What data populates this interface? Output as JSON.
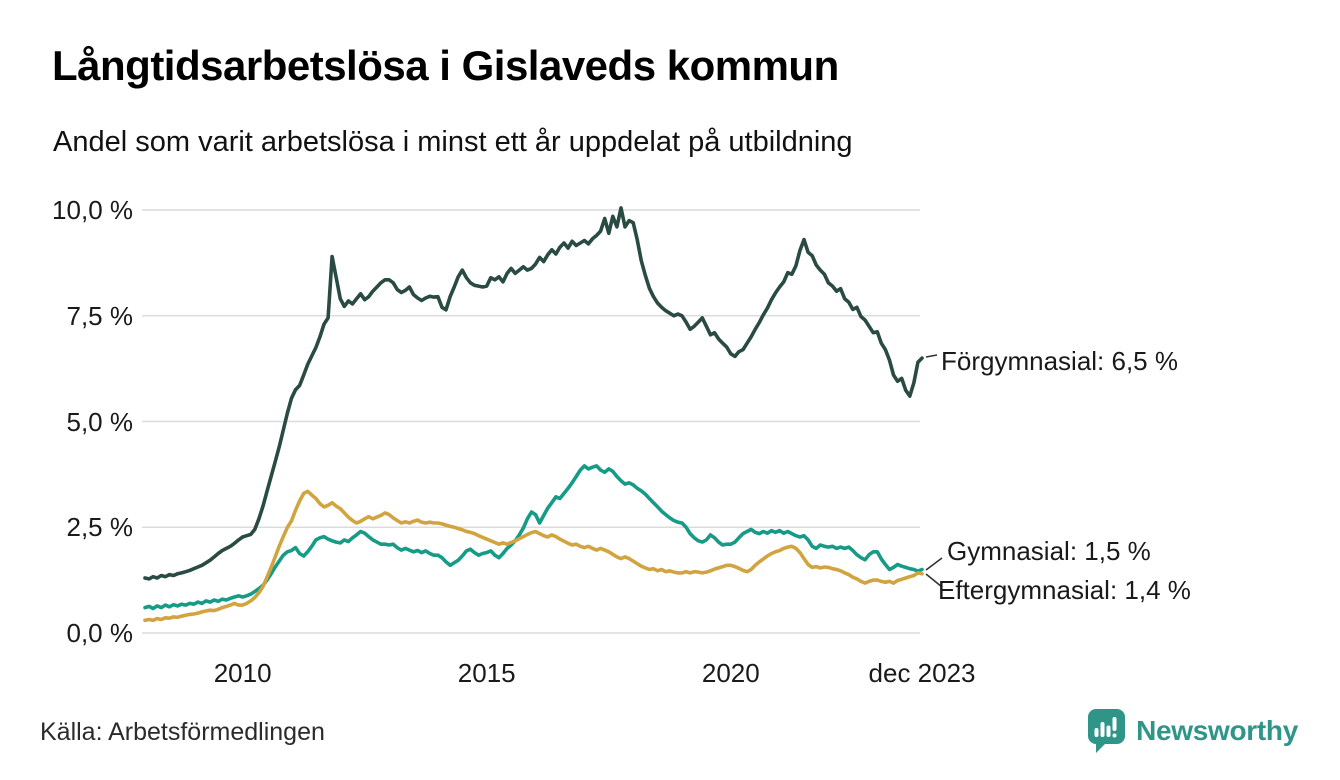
{
  "header": {
    "title": "Långtidsarbetslösa i Gislaveds kommun",
    "subtitle": "Andel som varit arbetslösa i minst ett år uppdelat på utbildning"
  },
  "footer": {
    "source": "Källa: Arbetsförmedlingen"
  },
  "branding": {
    "name": "Newsworthy",
    "color": "#2f9589",
    "icon": "newsworthy-speech-bubble-bar-chart-icon"
  },
  "colors": {
    "background": "#ffffff",
    "gridline": "#dcdcdc",
    "text": "#1a1a1a",
    "leader_line": "#333333",
    "forgymnasial": "#2a4b43",
    "gymnasial": "#169b87",
    "eftergymnasial": "#d2a440"
  },
  "chart_data": {
    "type": "line",
    "title": "Långtidsarbetslösa i Gislaveds kommun",
    "subtitle": "Andel som varit arbetslösa i minst ett år uppdelat på utbildning",
    "unit": "%",
    "frequency": "monthly",
    "x_start": "2008-01",
    "x_end": "2023-12",
    "ylim": [
      0,
      10
    ],
    "grid": "horizontal",
    "legend_position": "end-of-line-labels",
    "yticks": [
      {
        "value": 0,
        "label": "0,0 %"
      },
      {
        "value": 2.5,
        "label": "2,5 %"
      },
      {
        "value": 5,
        "label": "5,0 %"
      },
      {
        "value": 7.5,
        "label": "7,5 %"
      },
      {
        "value": 10,
        "label": "10,0 %"
      }
    ],
    "xticks": [
      {
        "year": 2010,
        "label": "2010"
      },
      {
        "year": 2015,
        "label": "2015"
      },
      {
        "year": 2020,
        "label": "2020"
      },
      {
        "year": 2023.917,
        "label": "dec 2023"
      }
    ],
    "series": [
      {
        "name": "Förgymnasial",
        "color": "#2a4b43",
        "end_value": 6.5,
        "end_label": "Förgymnasial: 6,5 %",
        "values": [
          1.3,
          1.28,
          1.33,
          1.3,
          1.36,
          1.33,
          1.38,
          1.36,
          1.4,
          1.42,
          1.45,
          1.48,
          1.52,
          1.56,
          1.6,
          1.66,
          1.72,
          1.8,
          1.88,
          1.95,
          2.0,
          2.05,
          2.12,
          2.2,
          2.27,
          2.3,
          2.33,
          2.45,
          2.7,
          3.0,
          3.35,
          3.7,
          4.05,
          4.4,
          4.8,
          5.2,
          5.55,
          5.75,
          5.85,
          6.1,
          6.35,
          6.55,
          6.75,
          7.0,
          7.3,
          7.45,
          8.9,
          8.4,
          7.9,
          7.72,
          7.85,
          7.78,
          7.9,
          8.02,
          7.88,
          7.95,
          8.08,
          8.18,
          8.28,
          8.35,
          8.35,
          8.28,
          8.12,
          8.05,
          8.1,
          8.18,
          8.0,
          7.92,
          7.86,
          7.92,
          7.96,
          7.94,
          7.95,
          7.7,
          7.64,
          7.95,
          8.18,
          8.42,
          8.58,
          8.4,
          8.28,
          8.22,
          8.2,
          8.18,
          8.2,
          8.4,
          8.35,
          8.42,
          8.3,
          8.5,
          8.62,
          8.5,
          8.58,
          8.66,
          8.58,
          8.62,
          8.72,
          8.88,
          8.78,
          8.94,
          9.06,
          8.96,
          9.12,
          9.22,
          9.1,
          9.26,
          9.16,
          9.22,
          9.28,
          9.2,
          9.32,
          9.4,
          9.5,
          9.8,
          9.45,
          9.85,
          9.6,
          10.05,
          9.6,
          9.75,
          9.7,
          9.3,
          8.8,
          8.45,
          8.15,
          7.95,
          7.8,
          7.7,
          7.62,
          7.56,
          7.5,
          7.54,
          7.5,
          7.35,
          7.18,
          7.25,
          7.35,
          7.45,
          7.25,
          7.05,
          7.1,
          6.95,
          6.85,
          6.76,
          6.6,
          6.54,
          6.65,
          6.7,
          6.85,
          7.0,
          7.18,
          7.34,
          7.52,
          7.68,
          7.88,
          8.04,
          8.18,
          8.3,
          8.52,
          8.48,
          8.68,
          9.05,
          9.3,
          9.0,
          8.92,
          8.7,
          8.58,
          8.48,
          8.28,
          8.2,
          8.08,
          8.14,
          7.9,
          7.82,
          7.65,
          7.7,
          7.48,
          7.4,
          7.25,
          7.1,
          7.12,
          6.85,
          6.7,
          6.45,
          6.1,
          5.95,
          6.02,
          5.74,
          5.6,
          5.92,
          6.4,
          6.5
        ]
      },
      {
        "name": "Gymnasial",
        "color": "#169b87",
        "end_value": 1.5,
        "end_label": "Gymnasial: 1,5 %",
        "values": [
          0.6,
          0.63,
          0.58,
          0.64,
          0.6,
          0.66,
          0.62,
          0.67,
          0.64,
          0.68,
          0.66,
          0.7,
          0.68,
          0.73,
          0.7,
          0.76,
          0.73,
          0.78,
          0.75,
          0.8,
          0.78,
          0.82,
          0.85,
          0.88,
          0.85,
          0.88,
          0.92,
          0.98,
          1.05,
          1.13,
          1.25,
          1.4,
          1.56,
          1.7,
          1.84,
          1.92,
          1.95,
          2.02,
          1.88,
          1.82,
          1.92,
          2.05,
          2.2,
          2.25,
          2.28,
          2.22,
          2.18,
          2.15,
          2.13,
          2.2,
          2.16,
          2.25,
          2.32,
          2.4,
          2.36,
          2.28,
          2.2,
          2.15,
          2.1,
          2.1,
          2.08,
          2.1,
          2.02,
          1.96,
          2.0,
          1.96,
          1.92,
          1.95,
          1.9,
          1.94,
          1.88,
          1.84,
          1.84,
          1.78,
          1.68,
          1.6,
          1.66,
          1.72,
          1.82,
          1.94,
          1.98,
          1.9,
          1.84,
          1.88,
          1.9,
          1.94,
          1.84,
          1.78,
          1.88,
          2.0,
          2.08,
          2.18,
          2.32,
          2.48,
          2.7,
          2.86,
          2.8,
          2.6,
          2.78,
          2.95,
          3.08,
          3.22,
          3.18,
          3.3,
          3.42,
          3.55,
          3.7,
          3.85,
          3.95,
          3.88,
          3.92,
          3.95,
          3.85,
          3.8,
          3.88,
          3.82,
          3.7,
          3.6,
          3.52,
          3.55,
          3.5,
          3.42,
          3.36,
          3.28,
          3.18,
          3.08,
          2.98,
          2.88,
          2.8,
          2.72,
          2.66,
          2.62,
          2.6,
          2.5,
          2.35,
          2.25,
          2.18,
          2.15,
          2.2,
          2.32,
          2.25,
          2.15,
          2.08,
          2.1,
          2.1,
          2.15,
          2.25,
          2.35,
          2.4,
          2.45,
          2.38,
          2.35,
          2.4,
          2.36,
          2.42,
          2.38,
          2.42,
          2.36,
          2.4,
          2.35,
          2.3,
          2.27,
          2.3,
          2.2,
          2.05,
          2.0,
          2.08,
          2.05,
          2.03,
          2.05,
          2.0,
          2.03,
          2.0,
          2.03,
          1.95,
          1.85,
          1.78,
          1.73,
          1.85,
          1.92,
          1.92,
          1.75,
          1.62,
          1.5,
          1.55,
          1.62,
          1.58,
          1.55,
          1.52,
          1.5,
          1.46,
          1.5
        ]
      },
      {
        "name": "Eftergymnasial",
        "color": "#d2a440",
        "end_value": 1.4,
        "end_label": "Eftergymnasial: 1,4 %",
        "values": [
          0.3,
          0.32,
          0.3,
          0.34,
          0.32,
          0.36,
          0.35,
          0.38,
          0.37,
          0.4,
          0.42,
          0.44,
          0.45,
          0.47,
          0.5,
          0.52,
          0.54,
          0.53,
          0.56,
          0.6,
          0.63,
          0.66,
          0.7,
          0.66,
          0.66,
          0.7,
          0.76,
          0.84,
          0.95,
          1.1,
          1.32,
          1.55,
          1.8,
          2.05,
          2.28,
          2.5,
          2.65,
          2.9,
          3.12,
          3.3,
          3.35,
          3.26,
          3.18,
          3.06,
          2.98,
          3.02,
          3.08,
          3.0,
          2.94,
          2.84,
          2.74,
          2.66,
          2.6,
          2.64,
          2.7,
          2.75,
          2.7,
          2.74,
          2.78,
          2.84,
          2.8,
          2.72,
          2.66,
          2.6,
          2.63,
          2.6,
          2.64,
          2.67,
          2.62,
          2.6,
          2.62,
          2.6,
          2.6,
          2.58,
          2.55,
          2.52,
          2.5,
          2.47,
          2.44,
          2.4,
          2.38,
          2.35,
          2.3,
          2.26,
          2.22,
          2.18,
          2.14,
          2.1,
          2.13,
          2.1,
          2.14,
          2.18,
          2.23,
          2.28,
          2.33,
          2.37,
          2.4,
          2.35,
          2.3,
          2.27,
          2.32,
          2.28,
          2.22,
          2.17,
          2.12,
          2.08,
          2.1,
          2.05,
          2.02,
          2.05,
          2.0,
          1.96,
          2.0,
          1.96,
          1.92,
          1.86,
          1.8,
          1.76,
          1.8,
          1.76,
          1.7,
          1.64,
          1.58,
          1.54,
          1.5,
          1.52,
          1.47,
          1.5,
          1.45,
          1.47,
          1.44,
          1.42,
          1.42,
          1.45,
          1.42,
          1.45,
          1.44,
          1.42,
          1.44,
          1.47,
          1.51,
          1.54,
          1.57,
          1.6,
          1.6,
          1.57,
          1.53,
          1.48,
          1.45,
          1.5,
          1.6,
          1.68,
          1.75,
          1.82,
          1.88,
          1.92,
          1.95,
          2.0,
          2.03,
          2.05,
          2.0,
          1.9,
          1.76,
          1.62,
          1.55,
          1.57,
          1.54,
          1.56,
          1.55,
          1.52,
          1.5,
          1.47,
          1.42,
          1.38,
          1.32,
          1.28,
          1.22,
          1.18,
          1.22,
          1.25,
          1.25,
          1.22,
          1.2,
          1.22,
          1.18,
          1.24,
          1.27,
          1.3,
          1.33,
          1.36,
          1.42,
          1.4
        ]
      }
    ]
  }
}
